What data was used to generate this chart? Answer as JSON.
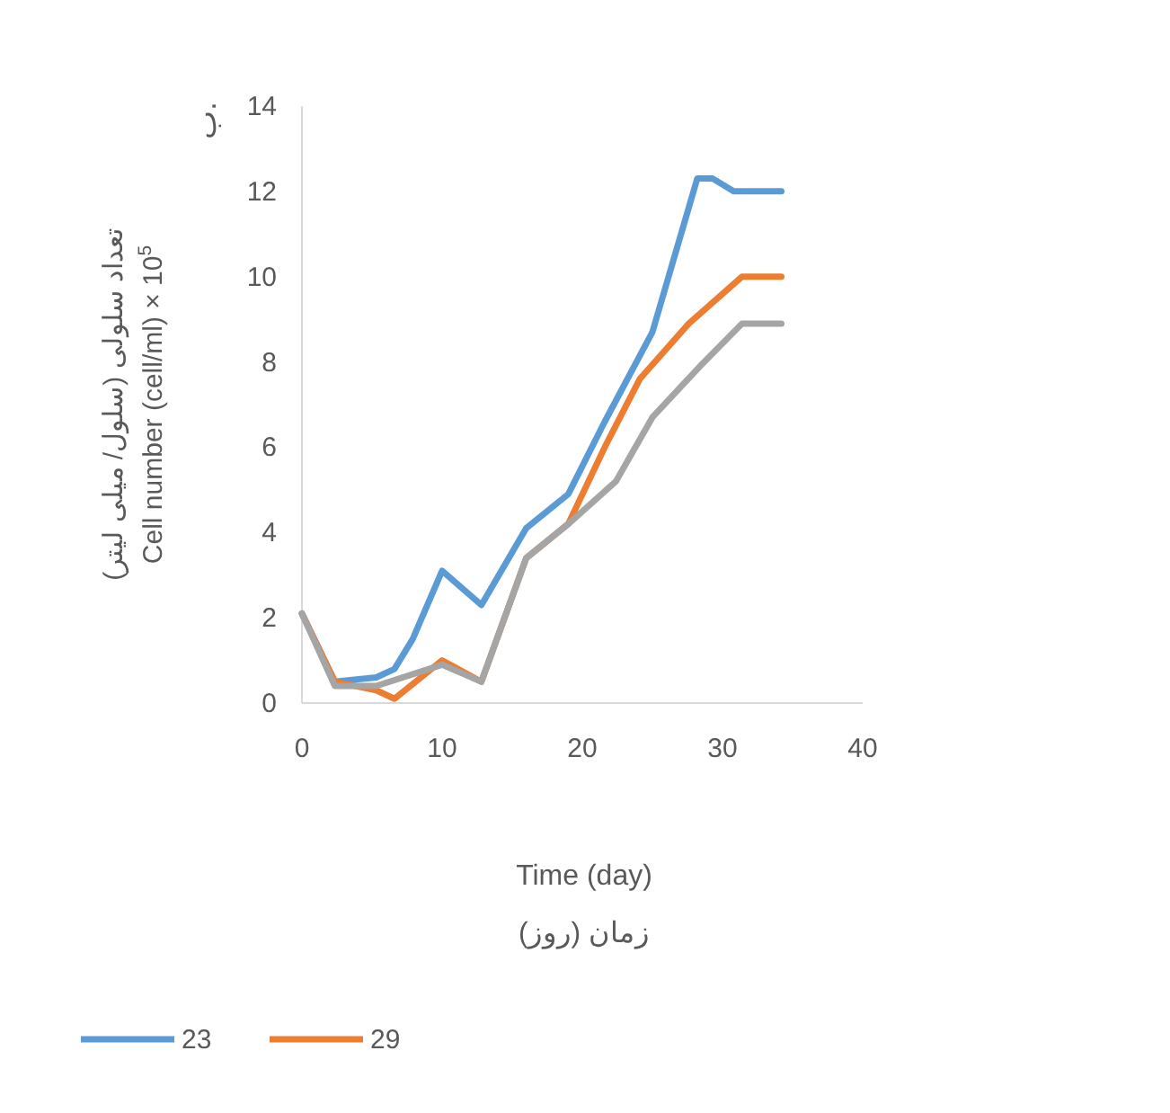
{
  "chart_data": {
    "type": "line",
    "xlabel": "Time (day)\nزمان (روز)",
    "ylabel": "تعداد سلولی (سلول/ میلی لیتر)\nCell number (cell/ml) × 10$^{5}$",
    "annotations": [
      "ب."
    ],
    "xlim": [
      0,
      40
    ],
    "xticks": [
      0,
      10,
      20,
      30,
      40
    ],
    "ylim": [
      0,
      14
    ],
    "yticks": [
      0,
      2,
      4,
      6,
      8,
      10,
      12,
      14
    ],
    "grid": false,
    "legend": "bottom left",
    "marker": "none",
    "line_style": "solid",
    "series": [
      {
        "name": "23",
        "color": "#5b9bd5",
        "x": [
          0,
          2.35,
          5.3,
          6.6,
          7.9,
          10,
          12.8,
          16,
          19,
          21.6,
          25,
          28.2,
          29.3,
          30.8,
          34.2
        ],
        "values": [
          2.1,
          0.5,
          0.6,
          0.8,
          1.5,
          3.1,
          2.3,
          4.1,
          4.9,
          6.6,
          8.7,
          12.3,
          12.3,
          12,
          12
        ]
      },
      {
        "name": "29",
        "color": "#ed7d31",
        "x": [
          0,
          2.35,
          5.3,
          6.6,
          10,
          12.8,
          16,
          19,
          21.6,
          24.1,
          27.6,
          31.4,
          34.2
        ],
        "values": [
          2.1,
          0.5,
          0.3,
          0.1,
          1,
          0.5,
          3.4,
          4.2,
          6,
          7.6,
          8.9,
          10,
          10
        ]
      },
      {
        "color": "#a5a5a5",
        "x": [
          0,
          2.35,
          5.3,
          10,
          12.8,
          16,
          19,
          22.4,
          25,
          28.4,
          31.4,
          34.2
        ],
        "values": [
          2.1,
          0.4,
          0.4,
          0.9,
          0.5,
          3.4,
          4.2,
          5.2,
          6.7,
          7.9,
          8.9,
          8.9
        ]
      }
    ]
  }
}
